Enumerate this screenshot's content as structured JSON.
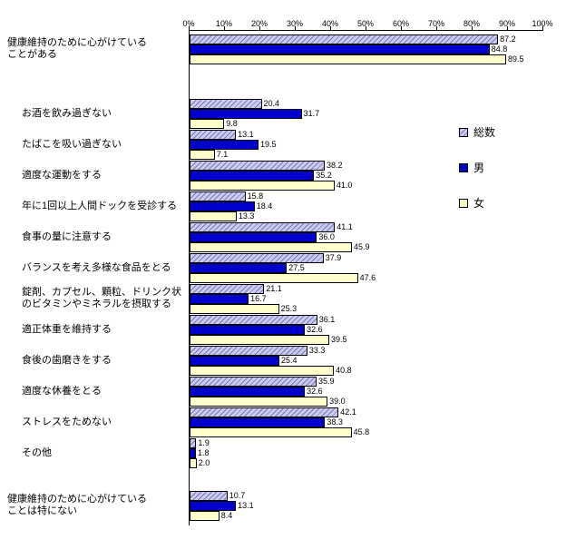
{
  "chart_data": {
    "type": "bar",
    "orientation": "horizontal",
    "title": "",
    "xlabel": "",
    "ylabel": "",
    "x_axis": {
      "tick_labels": [
        "0%",
        "10%",
        "20%",
        "30%",
        "40%",
        "50%",
        "60%",
        "70%",
        "80%",
        "90%",
        "100%"
      ],
      "min": 0,
      "max": 100,
      "grid": false
    },
    "legend": {
      "position": "right",
      "items": [
        "総数",
        "男",
        "女"
      ]
    },
    "series": [
      {
        "name": "総数",
        "fill": "#ccccf2",
        "pattern": "diagonal-hatch",
        "pattern_color": "#7777bb"
      },
      {
        "name": "男",
        "fill": "#0000cc"
      },
      {
        "name": "女",
        "fill": "#ffffcc"
      }
    ],
    "categories": [
      {
        "label_lines": [
          "健康維持のために心がけている",
          "ことがある"
        ],
        "indent": false,
        "values": [
          "87.2",
          "84.8",
          "89.5"
        ]
      },
      {
        "label_lines": [
          "お酒を飲み過ぎない"
        ],
        "indent": true,
        "values": [
          "20.4",
          "31.7",
          "9.8"
        ]
      },
      {
        "label_lines": [
          "たばこを吸い過ぎない"
        ],
        "indent": true,
        "values": [
          "13.1",
          "19.5",
          "7.1"
        ]
      },
      {
        "label_lines": [
          "適度な運動をする"
        ],
        "indent": true,
        "values": [
          "38.2",
          "35.2",
          "41.0"
        ]
      },
      {
        "label_lines": [
          "年に1回以上人間ドックを受診する"
        ],
        "indent": true,
        "values": [
          "15.8",
          "18.4",
          "13.3"
        ]
      },
      {
        "label_lines": [
          "食事の量に注意する"
        ],
        "indent": true,
        "values": [
          "41.1",
          "36.0",
          "45.9"
        ]
      },
      {
        "label_lines": [
          "バランスを考え多様な食品をとる"
        ],
        "indent": true,
        "values": [
          "37.9",
          "27.5",
          "47.6"
        ]
      },
      {
        "label_lines": [
          "錠剤、カプセル、顆粒、ドリンク状",
          "のビタミンやミネラルを摂取する"
        ],
        "indent": true,
        "values": [
          "21.1",
          "16.7",
          "25.3"
        ]
      },
      {
        "label_lines": [
          "適正体重を維持する"
        ],
        "indent": true,
        "values": [
          "36.1",
          "32.6",
          "39.5"
        ]
      },
      {
        "label_lines": [
          "食後の歯磨きをする"
        ],
        "indent": true,
        "values": [
          "33.3",
          "25.4",
          "40.8"
        ]
      },
      {
        "label_lines": [
          "適度な休養をとる"
        ],
        "indent": true,
        "values": [
          "35.9",
          "32.6",
          "39.0"
        ]
      },
      {
        "label_lines": [
          "ストレスをためない"
        ],
        "indent": true,
        "values": [
          "42.1",
          "38.3",
          "45.8"
        ]
      },
      {
        "label_lines": [
          "その他"
        ],
        "indent": true,
        "values": [
          "1.9",
          "1.8",
          "2.0"
        ]
      },
      {
        "label_lines": [
          "健康維持のために心がけている",
          "ことは特にない"
        ],
        "indent": false,
        "values": [
          "10.7",
          "13.1",
          "8.4"
        ]
      }
    ]
  }
}
